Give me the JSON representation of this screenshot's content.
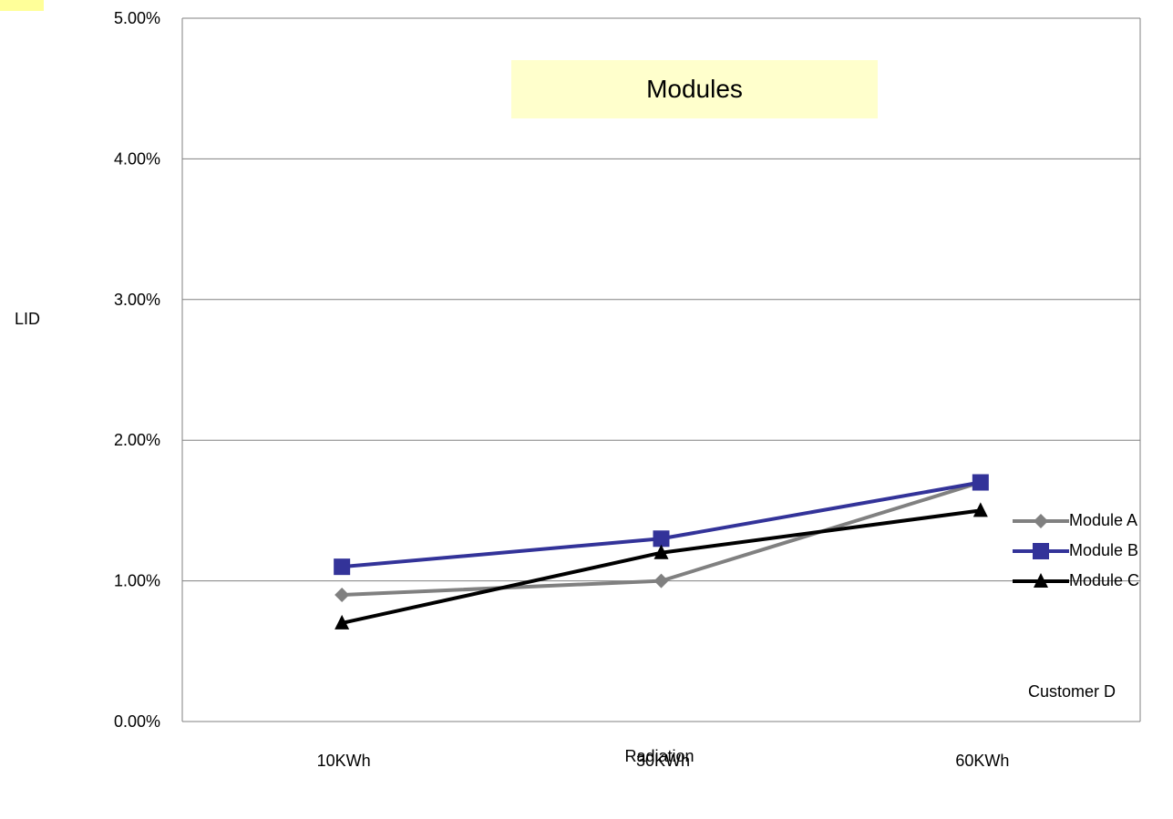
{
  "chart_data": {
    "type": "line",
    "title": "Modules",
    "xlabel": "Radiation",
    "ylabel": "LID",
    "categories": [
      "10KWh",
      "30KWh",
      "60KWh"
    ],
    "ylim": [
      0,
      0.05
    ],
    "yticks": [
      0,
      0.01,
      0.02,
      0.03,
      0.04,
      0.05
    ],
    "ytick_labels": [
      "0.00%",
      "1.00%",
      "2.00%",
      "3.00%",
      "4.00%",
      "5.00%"
    ],
    "grid": true,
    "legend_position": "right",
    "annotation": "Customer D",
    "series": [
      {
        "name": "Module A",
        "values": [
          0.009,
          0.01,
          0.017
        ],
        "color": "#808080",
        "marker": "diamond"
      },
      {
        "name": "Module B",
        "values": [
          0.011,
          0.013,
          0.017
        ],
        "color": "#333399",
        "marker": "square"
      },
      {
        "name": "Module C",
        "values": [
          0.007,
          0.012,
          0.015
        ],
        "color": "#000000",
        "marker": "triangle"
      }
    ]
  },
  "colors": {
    "title_background": "#ffffcc",
    "corner_background": "#ffff99",
    "gridline": "#808080"
  }
}
